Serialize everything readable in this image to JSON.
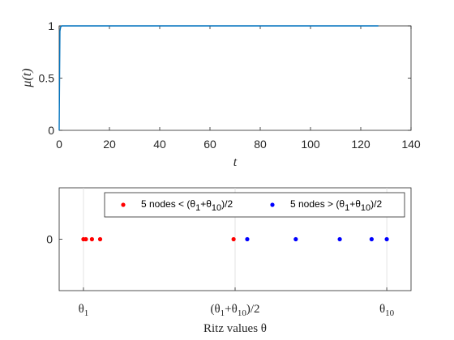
{
  "chart_data": [
    {
      "type": "line",
      "xlabel": "t",
      "ylabel": "μ(t)",
      "xlim": [
        0,
        140
      ],
      "ylim": [
        0,
        1
      ],
      "xticks": [
        "0",
        "20",
        "40",
        "60",
        "80",
        "100",
        "120",
        "140"
      ],
      "yticks": [
        "0",
        "0.5",
        "1"
      ],
      "grid": false,
      "series": [
        {
          "color": "#0072BD",
          "x": [
            0,
            0.3,
            0.6,
            1,
            2,
            3,
            5,
            10,
            20,
            40,
            60,
            80,
            100,
            120,
            127
          ],
          "y": [
            0,
            0.95,
            0.99,
            1,
            1,
            1,
            1,
            1,
            1,
            1,
            1,
            1,
            1,
            1,
            1
          ]
        }
      ]
    },
    {
      "type": "scatter",
      "xlabel": "Ritz values θ",
      "yticks": [
        "0"
      ],
      "xticks": [
        {
          "x": 0,
          "label": "θ_1"
        },
        {
          "x": 0.5,
          "label": "(θ_1+θ_10)/2"
        },
        {
          "x": 1,
          "label": "θ_10"
        }
      ],
      "xlim": [
        -0.08,
        1.08
      ],
      "ylim": [
        -1,
        1
      ],
      "grid": "vertical",
      "legend_position": "top-right",
      "series": [
        {
          "name": "5 nodes < (θ_1+θ_10)/2",
          "color": "#ff0000",
          "x": [
            0,
            0.008,
            0.028,
            0.055,
            0.495
          ],
          "y": [
            0,
            0,
            0,
            0,
            0
          ]
        },
        {
          "name": "5 nodes > (θ_1+θ_10)/2",
          "color": "#0000ff",
          "x": [
            0.54,
            0.7,
            0.845,
            0.95,
            1.0
          ],
          "y": [
            0,
            0,
            0,
            0,
            0
          ]
        }
      ]
    }
  ]
}
